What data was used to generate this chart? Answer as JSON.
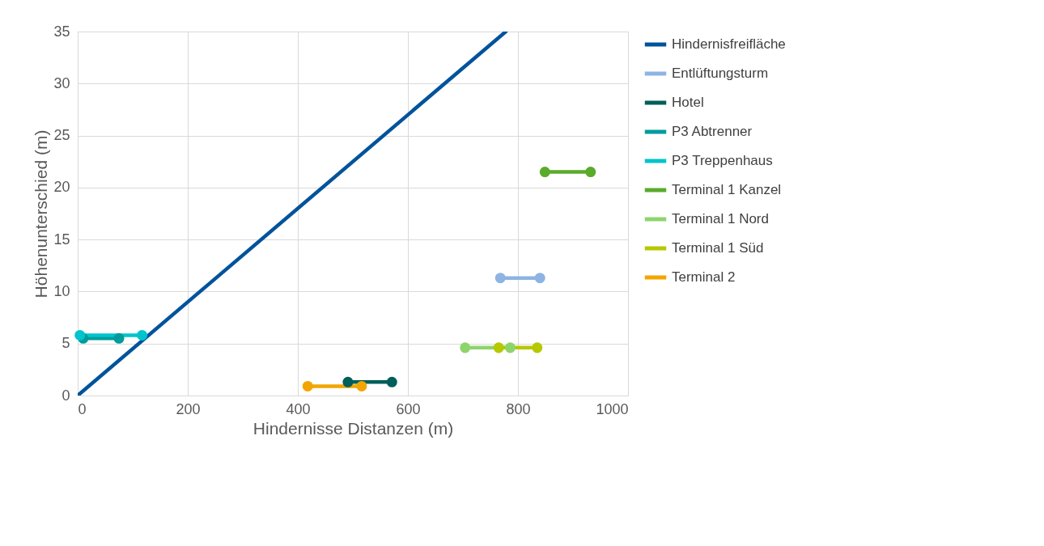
{
  "chart_data": {
    "type": "line",
    "xlabel": "Hindernisse Distanzen (m)",
    "ylabel": "Höhenunterschied (m)",
    "xlim": [
      0,
      1000
    ],
    "ylim": [
      0,
      35
    ],
    "xticks": [
      0,
      200,
      400,
      600,
      800,
      1000
    ],
    "yticks": [
      0,
      5,
      10,
      15,
      20,
      25,
      30,
      35
    ],
    "grid": true,
    "legend": "right",
    "line_style": "solid",
    "series": [
      {
        "name": "Hindernisfreifläche",
        "color": "#00539b",
        "x": [
          0,
          778
        ],
        "values": [
          0,
          35
        ],
        "marker": "none"
      },
      {
        "name": "Entlüftungsturm",
        "color": "#8db4e2",
        "x": [
          768,
          840
        ],
        "values": [
          11.3,
          11.3
        ],
        "marker": "circle"
      },
      {
        "name": "Hotel",
        "color": "#005f5a",
        "x": [
          491,
          571
        ],
        "values": [
          1.3,
          1.3
        ],
        "marker": "circle"
      },
      {
        "name": "P3 Abtrenner",
        "color": "#009b9b",
        "x": [
          10,
          75
        ],
        "values": [
          5.5,
          5.5
        ],
        "marker": "circle"
      },
      {
        "name": "P3 Treppenhaus",
        "color": "#00c4cc",
        "x": [
          4,
          117
        ],
        "values": [
          5.8,
          5.8
        ],
        "marker": "circle"
      },
      {
        "name": "Terminal 1 Kanzel",
        "color": "#5aab2c",
        "x": [
          849,
          932
        ],
        "values": [
          21.5,
          21.5
        ],
        "marker": "circle"
      },
      {
        "name": "Terminal 1 Nord",
        "color": "#8ed46c",
        "x": [
          704,
          786
        ],
        "values": [
          4.6,
          4.6
        ],
        "marker": "circle"
      },
      {
        "name": "Terminal 1 Süd",
        "color": "#b5c800",
        "x": [
          765,
          835
        ],
        "values": [
          4.6,
          4.6
        ],
        "marker": "circle"
      },
      {
        "name": "Terminal 2",
        "color": "#f2a500",
        "x": [
          418,
          516
        ],
        "values": [
          0.9,
          0.9
        ],
        "marker": "circle"
      }
    ]
  }
}
